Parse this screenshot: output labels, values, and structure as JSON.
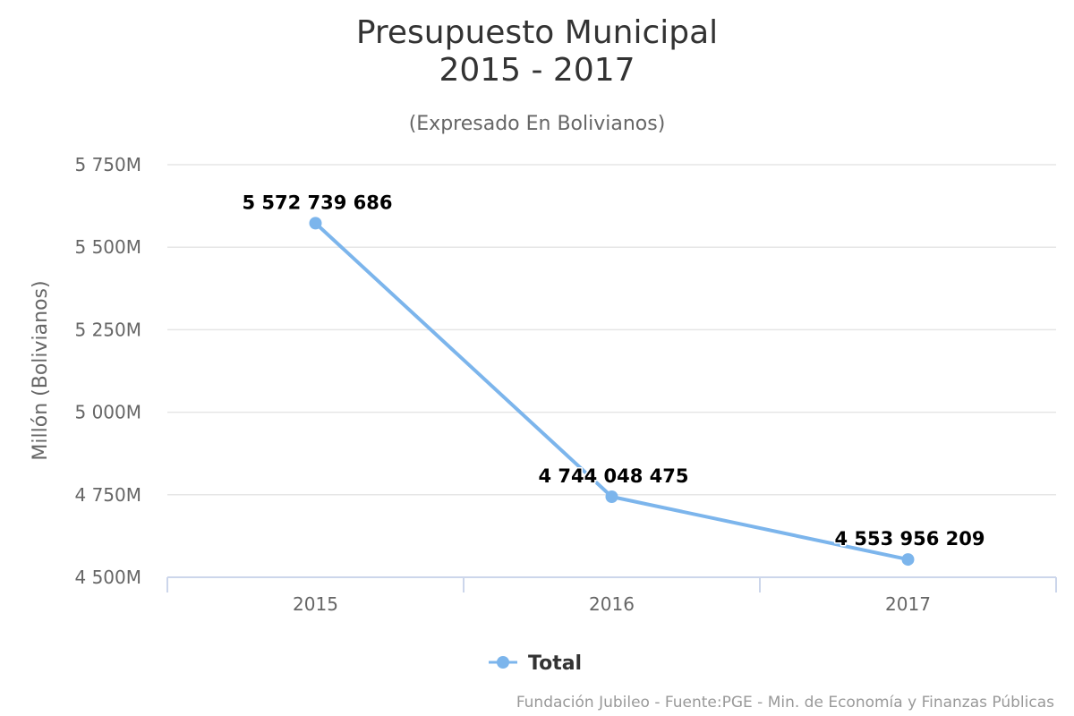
{
  "chart_data": {
    "type": "line",
    "title_line1": "Presupuesto Municipal",
    "title_line2": "2015 - 2017",
    "subtitle": "(Expresado En Bolivianos)",
    "ylabel": "Millón (Bolivianos)",
    "xlabel": "",
    "categories": [
      "2015",
      "2016",
      "2017"
    ],
    "series": [
      {
        "name": "Total",
        "values": [
          5572739686,
          4744048475,
          4553956209
        ],
        "data_labels": [
          "5 572 739 686",
          "4 744 048 475",
          "4 553 956 209"
        ],
        "color": "#7cb5ec"
      }
    ],
    "ylim": [
      4500000000,
      5750000000
    ],
    "yticks": [
      4500000000,
      4750000000,
      5000000000,
      5250000000,
      5500000000,
      5750000000
    ],
    "ytick_labels": [
      "4 500M",
      "4 750M",
      "5 000M",
      "5 250M",
      "5 500M",
      "5 750M"
    ],
    "grid": true,
    "legend_position": "bottom-center",
    "credits": "Fundación Jubileo - Fuente:PGE - Min. de Economía y Finanzas Públicas"
  },
  "colors": {
    "series": "#7cb5ec",
    "grid": "#e6e6e6",
    "axis": "#ccd6eb"
  }
}
